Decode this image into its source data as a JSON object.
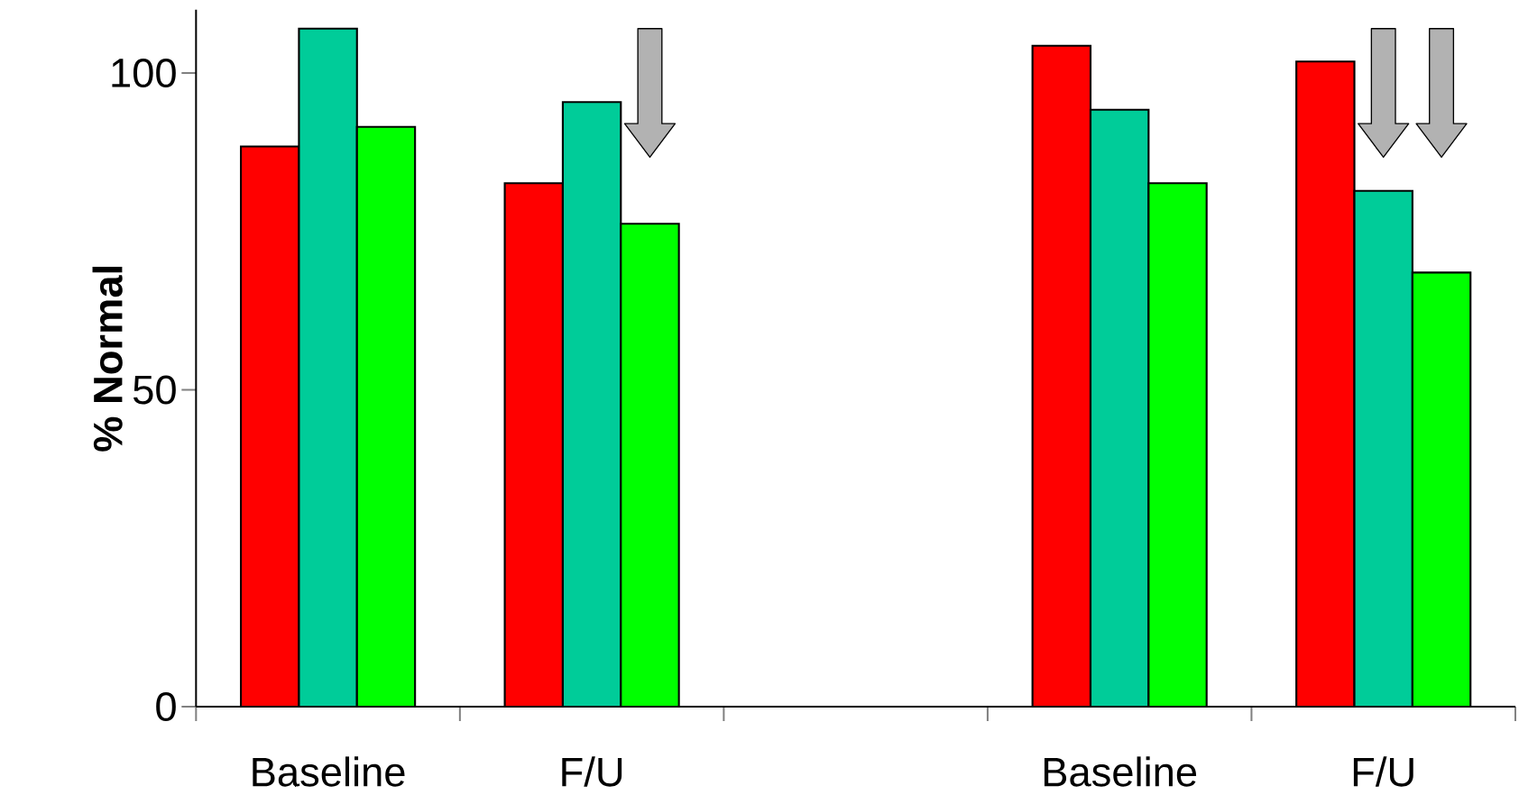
{
  "chart_data": {
    "type": "bar",
    "ylabel": "% Normal",
    "categories": [
      "Baseline",
      "F/U",
      null,
      "Baseline",
      "F/U"
    ],
    "series": [
      {
        "color": "#ff0000",
        "values": [
          88.4,
          82.6,
          null,
          104.3,
          101.8
        ]
      },
      {
        "color": "#00cc99",
        "values": [
          107,
          95.4,
          null,
          94.2,
          81.4
        ]
      },
      {
        "color": "#00ff00",
        "values": [
          91.5,
          76.2,
          null,
          82.6,
          68.5
        ]
      }
    ],
    "ylim": [
      0,
      110
    ],
    "yticks": [
      0,
      50,
      100
    ],
    "grid": false
  }
}
